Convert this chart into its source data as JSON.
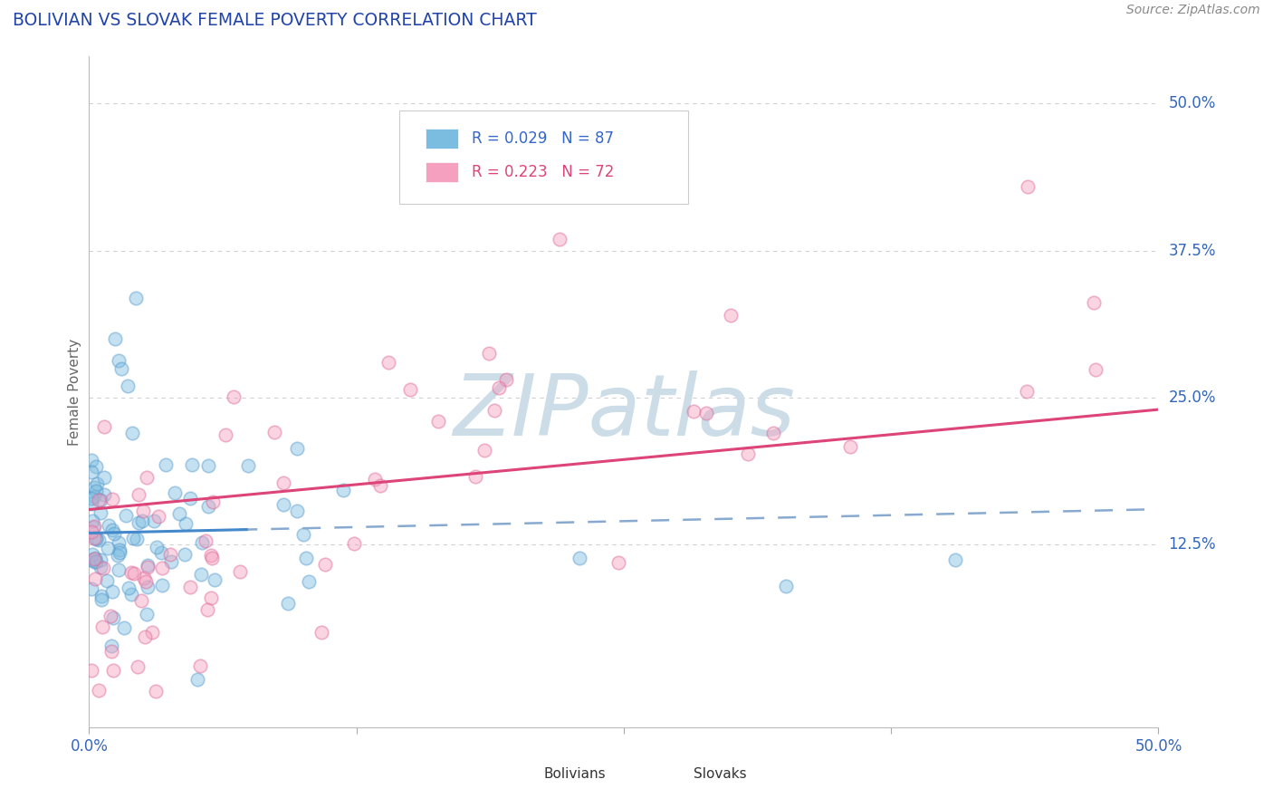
{
  "title": "BOLIVIAN VS SLOVAK FEMALE POVERTY CORRELATION CHART",
  "source_text": "Source: ZipAtlas.com",
  "ylabel": "Female Poverty",
  "xlim": [
    0.0,
    0.5
  ],
  "ylim": [
    -0.03,
    0.54
  ],
  "ytick_positions": [
    0.125,
    0.25,
    0.375,
    0.5
  ],
  "ytick_labels": [
    "12.5%",
    "25.0%",
    "37.5%",
    "50.0%"
  ],
  "bolivian_color": "#7bbde0",
  "bolivian_edge_color": "#5599cc",
  "slovak_color": "#f5a0be",
  "slovak_edge_color": "#dd6699",
  "bolivian_R": 0.029,
  "bolivian_N": 87,
  "slovak_R": 0.223,
  "slovak_N": 72,
  "trend_blue_color": "#4488cc",
  "trend_blue_dash_color": "#88aad0",
  "trend_pink_color": "#dd4477",
  "watermark": "ZIPatlas",
  "watermark_color": "#ccdde8",
  "background_color": "#ffffff",
  "grid_color": "#cccccc",
  "title_color": "#2244aa",
  "ytick_color": "#3366bb",
  "xtick_color": "#3366bb"
}
